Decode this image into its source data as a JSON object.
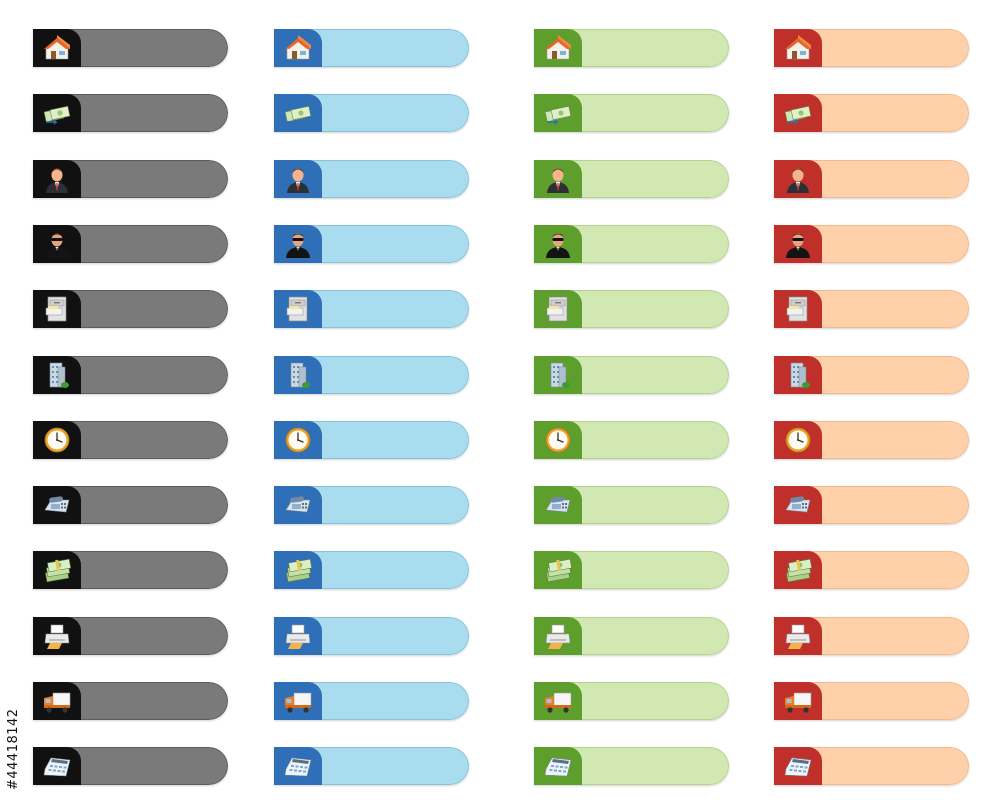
{
  "stock_id": "#44418142",
  "themes": [
    {
      "name": "black",
      "tab_color": "#111111",
      "bar_color": "#7a7a7a",
      "bar_border": "#5c5c5c"
    },
    {
      "name": "blue",
      "tab_color": "#2f6fb7",
      "bar_color": "#a8dcee",
      "bar_border": "#86c3db"
    },
    {
      "name": "green",
      "tab_color": "#5e9e2c",
      "bar_color": "#d2e8b3",
      "bar_border": "#b5d28f"
    },
    {
      "name": "red",
      "tab_color": "#c0302a",
      "bar_color": "#ffd1aa",
      "bar_border": "#f2b98a"
    }
  ],
  "icons": [
    "house-icon",
    "money-transfer-icon",
    "businessman-icon",
    "security-guard-icon",
    "file-cabinet-icon",
    "office-building-icon",
    "clock-icon",
    "telephone-icon",
    "money-stack-icon",
    "printer-icon",
    "delivery-truck-icon",
    "calculator-icon"
  ]
}
